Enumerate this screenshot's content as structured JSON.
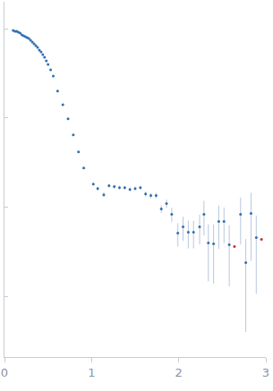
{
  "chart_data": {
    "type": "scatter",
    "log": "y",
    "grid": false,
    "tick_labels": "x",
    "marker": "circle",
    "xlim": [
      0,
      3
    ],
    "xticks": [
      0,
      1,
      2,
      3
    ],
    "ylim": [
      0.00021,
      2
    ],
    "yticks": [
      0.001,
      0.01,
      0.1,
      1
    ],
    "series": [
      {
        "color": "#2f6fb0",
        "x": [
          0.1,
          0.12,
          0.14,
          0.16,
          0.18,
          0.2,
          0.22,
          0.24,
          0.26,
          0.28,
          0.3,
          0.32,
          0.34,
          0.36,
          0.38,
          0.4,
          0.42,
          0.44,
          0.46,
          0.48,
          0.5,
          0.53,
          0.56,
          0.61,
          0.67,
          0.73,
          0.79,
          0.85,
          0.91,
          1.02,
          1.07,
          1.14,
          1.2,
          1.26,
          1.32,
          1.38,
          1.44,
          1.5,
          1.56,
          1.62,
          1.68,
          1.74,
          1.8,
          1.86,
          1.92,
          1.99,
          2.05,
          2.11,
          2.17,
          2.24,
          2.29,
          2.34,
          2.4,
          2.46,
          2.52,
          2.58,
          2.71,
          2.77,
          2.83,
          2.89
        ],
        "values": [
          0.955,
          0.933,
          0.933,
          0.912,
          0.891,
          0.851,
          0.832,
          0.813,
          0.794,
          0.776,
          0.741,
          0.708,
          0.676,
          0.646,
          0.617,
          0.575,
          0.55,
          0.513,
          0.479,
          0.437,
          0.398,
          0.347,
          0.295,
          0.2,
          0.141,
          0.0977,
          0.0646,
          0.0417,
          0.0275,
          0.0182,
          0.0162,
          0.0138,
          0.0174,
          0.017,
          0.0166,
          0.0166,
          0.0158,
          0.0162,
          0.0166,
          0.0141,
          0.0135,
          0.0135,
          0.00955,
          0.011,
          0.00832,
          0.00513,
          0.00603,
          0.00525,
          0.00525,
          0.00603,
          0.00832,
          0.00398,
          0.00389,
          0.00692,
          0.00692,
          0.0038,
          0.00832,
          0.0024,
          0.00851,
          0.00457
        ],
        "errors": [
          0.004,
          0.004,
          0.004,
          0.004,
          0.004,
          0.004,
          0.004,
          0.004,
          0.004,
          0.004,
          0.004,
          0.004,
          0.004,
          0.004,
          0.004,
          0.004,
          0.004,
          0.004,
          0.004,
          0.004,
          0.004,
          0.003,
          0.003,
          0.002,
          0.002,
          0.001,
          0.001,
          0.0008,
          0.0006,
          0.0006,
          0.0008,
          0.0008,
          0.0008,
          0.0008,
          0.0008,
          0.0008,
          0.0008,
          0.0008,
          0.0008,
          0.0009,
          0.0009,
          0.001,
          0.001,
          0.0012,
          0.0015,
          0.0015,
          0.0018,
          0.0018,
          0.0018,
          0.0022,
          0.0035,
          0.0025,
          0.0025,
          0.0035,
          0.003,
          0.0025,
          0.0045,
          0.002,
          0.006,
          0.0035
        ]
      },
      {
        "color": "#d62728",
        "x": [
          2.64,
          2.95
        ],
        "values": [
          0.00363,
          0.00437
        ]
      }
    ]
  }
}
